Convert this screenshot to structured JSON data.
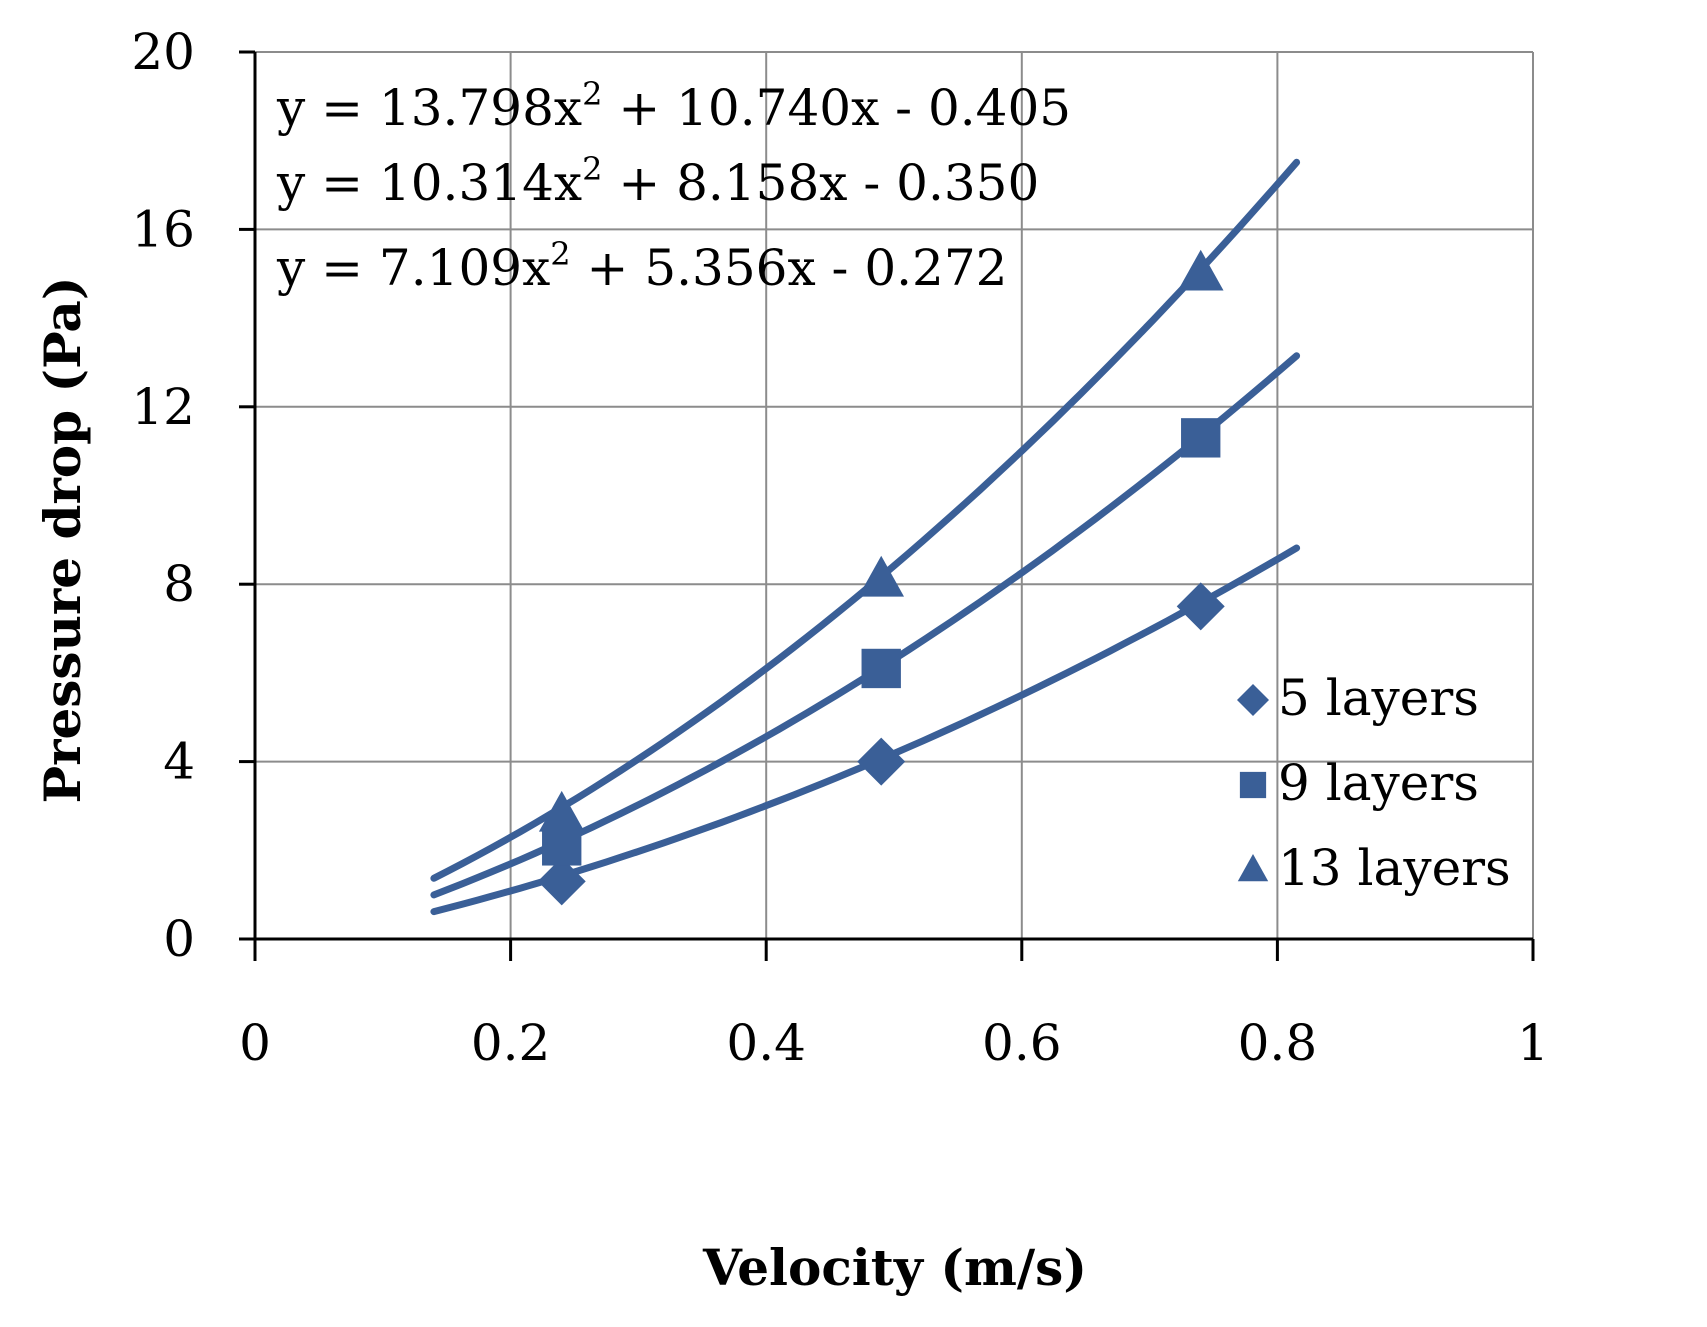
{
  "chart_data": {
    "type": "scatter",
    "title": "",
    "xlabel": "Velocity  (m/s)",
    "ylabel": "Pressure drop  (Pa)",
    "xlim": [
      0,
      1
    ],
    "ylim": [
      0,
      20
    ],
    "x_ticks": [
      "0",
      "0.2",
      "0.4",
      "0.6",
      "0.8",
      "1"
    ],
    "y_ticks": [
      "0",
      "4",
      "8",
      "12",
      "16",
      "20"
    ],
    "grid": true,
    "legend_position": "bottom-right",
    "marker_color": "#3a5f97",
    "fit_range": [
      0.14,
      0.815
    ],
    "series": [
      {
        "name": "5 layers",
        "marker": "diamond",
        "x": [
          0.24,
          0.49,
          0.74
        ],
        "y": [
          1.3,
          4.0,
          7.5
        ],
        "fit": {
          "a": 7.109,
          "b": 5.356,
          "c": -0.272
        }
      },
      {
        "name": "9 layers",
        "marker": "square",
        "x": [
          0.24,
          0.49,
          0.74
        ],
        "y": [
          2.1,
          6.1,
          11.3
        ],
        "fit": {
          "a": 10.314,
          "b": 8.158,
          "c": -0.35
        }
      },
      {
        "name": "13 layers",
        "marker": "triangle",
        "x": [
          0.24,
          0.49,
          0.74
        ],
        "y": [
          2.8,
          8.1,
          15.0
        ],
        "fit": {
          "a": 13.798,
          "b": 10.74,
          "c": -0.405
        }
      }
    ],
    "annotations": [
      {
        "pre": "y = 13.798x",
        "sup": "2",
        "post": " + 10.740x - 0.405"
      },
      {
        "pre": "y = 10.314x",
        "sup": "2",
        "post": " + 8.158x - 0.350"
      },
      {
        "pre": "y = 7.109x",
        "sup": "2",
        "post": " + 5.356x - 0.272"
      }
    ]
  }
}
